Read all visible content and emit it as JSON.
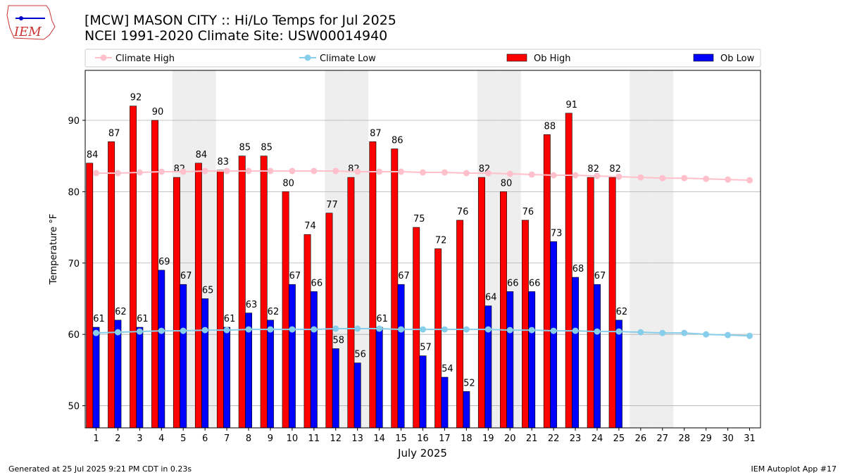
{
  "chart_data": {
    "type": "bar",
    "title": "[MCW] MASON CITY :: Hi/Lo Temps for Jul 2025",
    "subtitle": "NCEI 1991-2020 Climate Site: USW00014940",
    "x_label": "July 2025",
    "y_label": "Temperature °F",
    "logo_text": "IEM",
    "footer_left": "Generated at 25 Jul 2025 9:21 PM CDT in 0.23s",
    "footer_right": "IEM Autoplot App #17",
    "x": [
      1,
      2,
      3,
      4,
      5,
      6,
      7,
      8,
      9,
      10,
      11,
      12,
      13,
      14,
      15,
      16,
      17,
      18,
      19,
      20,
      21,
      22,
      23,
      24,
      25,
      26,
      27,
      28,
      29,
      30,
      31
    ],
    "xlim": [
      0.5,
      31.5
    ],
    "xticks": [
      1,
      2,
      3,
      4,
      5,
      6,
      7,
      8,
      9,
      10,
      11,
      12,
      13,
      14,
      15,
      16,
      17,
      18,
      19,
      20,
      21,
      22,
      23,
      24,
      25,
      26,
      27,
      28,
      29,
      30,
      31
    ],
    "ylim": [
      46.9,
      97.0
    ],
    "yticks": [
      50,
      60,
      70,
      80,
      90
    ],
    "grid": true,
    "weekend_days": [
      5,
      6,
      12,
      13,
      19,
      20,
      26,
      27
    ],
    "series": [
      {
        "name": "Climate High",
        "type": "line",
        "color": "#ffc0cb",
        "values": [
          82.6,
          82.6,
          82.7,
          82.8,
          82.8,
          82.9,
          82.9,
          82.9,
          82.9,
          82.9,
          82.9,
          82.9,
          82.8,
          82.8,
          82.8,
          82.7,
          82.7,
          82.6,
          82.6,
          82.5,
          82.4,
          82.3,
          82.3,
          82.2,
          82.1,
          82.0,
          81.9,
          81.9,
          81.8,
          81.7,
          81.6
        ]
      },
      {
        "name": "Climate Low",
        "type": "line",
        "color": "#87ceeb",
        "values": [
          60.2,
          60.3,
          60.4,
          60.5,
          60.5,
          60.6,
          60.6,
          60.7,
          60.7,
          60.7,
          60.7,
          60.8,
          60.8,
          60.8,
          60.7,
          60.7,
          60.7,
          60.7,
          60.7,
          60.6,
          60.6,
          60.5,
          60.5,
          60.4,
          60.4,
          60.3,
          60.2,
          60.2,
          60.0,
          59.9,
          59.8
        ]
      },
      {
        "name": "Ob High",
        "type": "bar",
        "color": "#ff0000",
        "values": [
          84,
          87,
          92,
          90,
          82,
          84,
          83,
          85,
          85,
          80,
          74,
          77,
          82,
          87,
          86,
          75,
          72,
          76,
          82,
          80,
          76,
          88,
          91,
          82,
          82,
          null,
          null,
          null,
          null,
          null,
          null
        ]
      },
      {
        "name": "Ob Low",
        "type": "bar",
        "color": "#0000ff",
        "values": [
          61,
          62,
          61,
          69,
          67,
          65,
          61,
          63,
          62,
          67,
          66,
          58,
          56,
          61,
          67,
          57,
          54,
          52,
          64,
          66,
          66,
          73,
          68,
          67,
          62,
          null,
          null,
          null,
          null,
          null,
          null
        ]
      }
    ]
  }
}
